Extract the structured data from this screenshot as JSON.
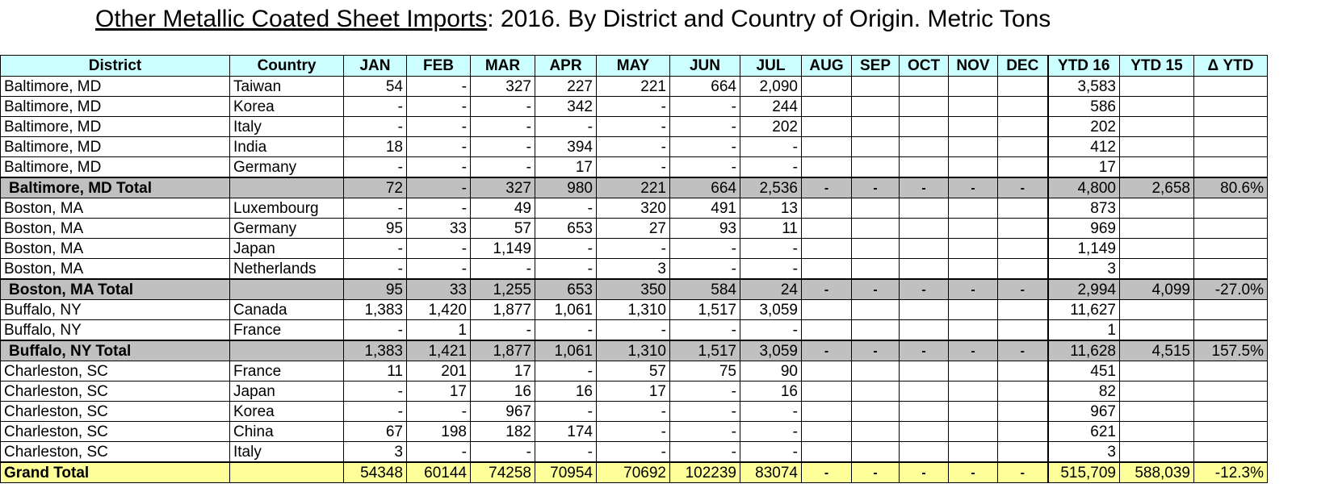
{
  "title": {
    "underlined": "Other Metallic Coated Sheet Imports",
    "rest": ": 2016. By District and Country of Origin. Metric Tons"
  },
  "columns": [
    "District",
    "Country",
    "JAN",
    "FEB",
    "MAR",
    "APR",
    "MAY",
    "JUN",
    "JUL",
    "AUG",
    "SEP",
    "OCT",
    "NOV",
    "DEC",
    "YTD 16",
    "YTD 15",
    "Δ YTD"
  ],
  "rows": [
    {
      "type": "data",
      "cells": [
        "Baltimore, MD",
        "Taiwan",
        "54",
        "-",
        "327",
        "227",
        "221",
        "664",
        "2,090",
        "",
        "",
        "",
        "",
        "",
        "3,583",
        "",
        ""
      ]
    },
    {
      "type": "data",
      "cells": [
        "Baltimore, MD",
        "Korea",
        "-",
        "-",
        "-",
        "342",
        "-",
        "-",
        "244",
        "",
        "",
        "",
        "",
        "",
        "586",
        "",
        ""
      ]
    },
    {
      "type": "data",
      "cells": [
        "Baltimore, MD",
        "Italy",
        "-",
        "-",
        "-",
        "-",
        "-",
        "-",
        "202",
        "",
        "",
        "",
        "",
        "",
        "202",
        "",
        ""
      ]
    },
    {
      "type": "data",
      "cells": [
        "Baltimore, MD",
        "India",
        "18",
        "-",
        "-",
        "394",
        "-",
        "-",
        "-",
        "",
        "",
        "",
        "",
        "",
        "412",
        "",
        ""
      ]
    },
    {
      "type": "data",
      "cells": [
        "Baltimore, MD",
        "Germany",
        "-",
        "-",
        "-",
        "17",
        "-",
        "-",
        "-",
        "",
        "",
        "",
        "",
        "",
        "17",
        "",
        ""
      ]
    },
    {
      "type": "total",
      "cells": [
        "Baltimore, MD  Total",
        "",
        "72",
        "-",
        "327",
        "980",
        "221",
        "664",
        "2,536",
        "-",
        "-",
        "-",
        "-",
        "-",
        "4,800",
        "2,658",
        "80.6%"
      ]
    },
    {
      "type": "data",
      "cells": [
        "Boston, MA",
        "Luxembourg",
        "-",
        "-",
        "49",
        "-",
        "320",
        "491",
        "13",
        "",
        "",
        "",
        "",
        "",
        "873",
        "",
        ""
      ]
    },
    {
      "type": "data",
      "cells": [
        "Boston, MA",
        "Germany",
        "95",
        "33",
        "57",
        "653",
        "27",
        "93",
        "11",
        "",
        "",
        "",
        "",
        "",
        "969",
        "",
        ""
      ]
    },
    {
      "type": "data",
      "cells": [
        "Boston, MA",
        "Japan",
        "-",
        "-",
        "1,149",
        "-",
        "-",
        "-",
        "-",
        "",
        "",
        "",
        "",
        "",
        "1,149",
        "",
        ""
      ]
    },
    {
      "type": "data",
      "cells": [
        "Boston, MA",
        "Netherlands",
        "-",
        "-",
        "-",
        "-",
        "3",
        "-",
        "-",
        "",
        "",
        "",
        "",
        "",
        "3",
        "",
        ""
      ]
    },
    {
      "type": "total",
      "cells": [
        "Boston, MA  Total",
        "",
        "95",
        "33",
        "1,255",
        "653",
        "350",
        "584",
        "24",
        "-",
        "-",
        "-",
        "-",
        "-",
        "2,994",
        "4,099",
        "-27.0%"
      ]
    },
    {
      "type": "data",
      "cells": [
        "Buffalo, NY",
        "Canada",
        "1,383",
        "1,420",
        "1,877",
        "1,061",
        "1,310",
        "1,517",
        "3,059",
        "",
        "",
        "",
        "",
        "",
        "11,627",
        "",
        ""
      ]
    },
    {
      "type": "data",
      "cells": [
        "Buffalo, NY",
        "France",
        "-",
        "1",
        "-",
        "-",
        "-",
        "-",
        "-",
        "",
        "",
        "",
        "",
        "",
        "1",
        "",
        ""
      ]
    },
    {
      "type": "total",
      "cells": [
        "Buffalo, NY  Total",
        "",
        "1,383",
        "1,421",
        "1,877",
        "1,061",
        "1,310",
        "1,517",
        "3,059",
        "-",
        "-",
        "-",
        "-",
        "-",
        "11,628",
        "4,515",
        "157.5%"
      ]
    },
    {
      "type": "data",
      "cells": [
        "Charleston, SC",
        "France",
        "11",
        "201",
        "17",
        "-",
        "57",
        "75",
        "90",
        "",
        "",
        "",
        "",
        "",
        "451",
        "",
        ""
      ]
    },
    {
      "type": "data",
      "cells": [
        "Charleston, SC",
        "Japan",
        "-",
        "17",
        "16",
        "16",
        "17",
        "-",
        "16",
        "",
        "",
        "",
        "",
        "",
        "82",
        "",
        ""
      ]
    },
    {
      "type": "data",
      "cells": [
        "Charleston, SC",
        "Korea",
        "-",
        "-",
        "967",
        "-",
        "-",
        "-",
        "-",
        "",
        "",
        "",
        "",
        "",
        "967",
        "",
        ""
      ]
    },
    {
      "type": "data",
      "cells": [
        "Charleston, SC",
        "China",
        "67",
        "198",
        "182",
        "174",
        "-",
        "-",
        "-",
        "",
        "",
        "",
        "",
        "",
        "621",
        "",
        ""
      ]
    },
    {
      "type": "data",
      "cells": [
        "Charleston, SC",
        "Italy",
        "3",
        "-",
        "-",
        "-",
        "-",
        "-",
        "-",
        "",
        "",
        "",
        "",
        "",
        "3",
        "",
        ""
      ]
    },
    {
      "type": "grand",
      "cells": [
        "Grand Total",
        "",
        "54348",
        "60144",
        "74258",
        "70954",
        "70692",
        "102239",
        "83074",
        "-",
        "-",
        "-",
        "-",
        "-",
        "515,709",
        "588,039",
        "-12.3%"
      ]
    }
  ]
}
